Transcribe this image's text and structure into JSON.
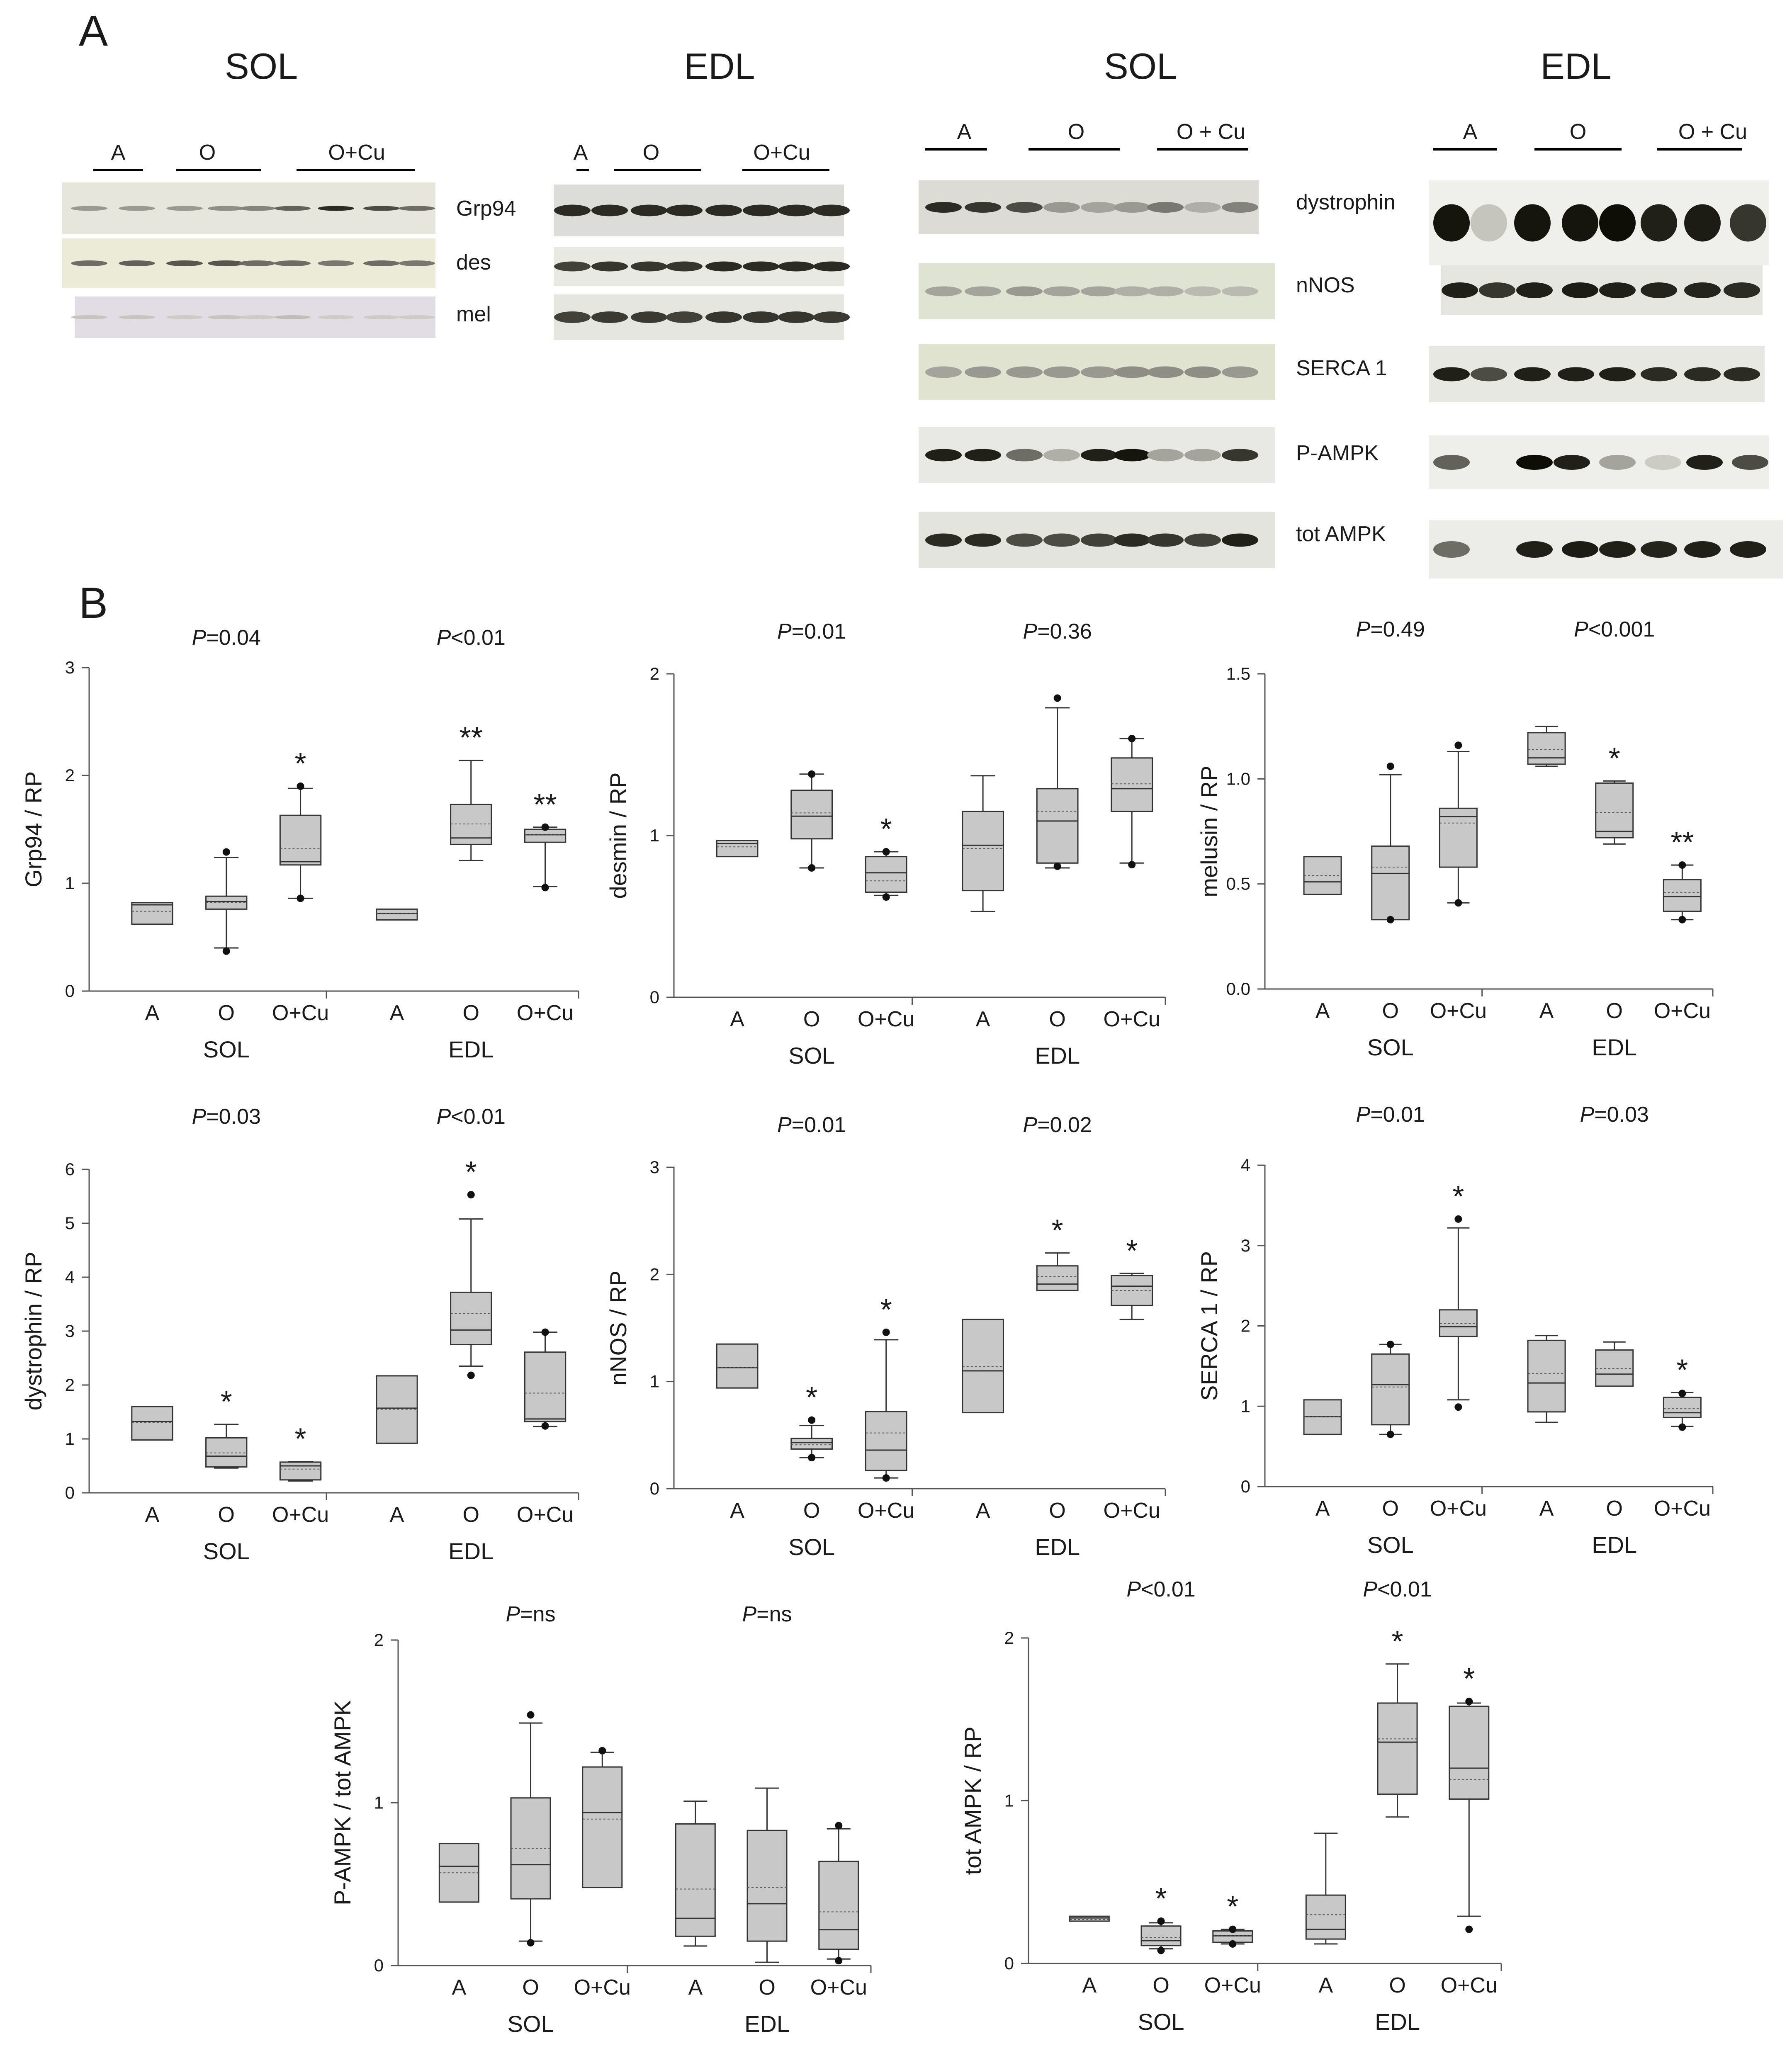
{
  "panel_a": {
    "letter": "A",
    "blots": [
      {
        "title": "SOL",
        "groups": [
          "A",
          "O",
          "O+Cu"
        ],
        "proteins": [
          "Grp94",
          "des",
          "mel"
        ]
      },
      {
        "title": "EDL",
        "groups": [
          "A",
          "O",
          "O+Cu"
        ],
        "proteins": []
      },
      {
        "title": "SOL",
        "groups": [
          "A",
          "O",
          "O + Cu"
        ],
        "proteins": [
          "dystrophin",
          "nNOS",
          "SERCA 1",
          "P-AMPK",
          "tot AMPK"
        ]
      },
      {
        "title": "EDL",
        "groups": [
          "A",
          "O",
          "O + Cu"
        ],
        "proteins": []
      }
    ]
  },
  "panel_b": {
    "letter": "B"
  },
  "chart_data": [
    {
      "type": "box",
      "ylabel": "Grp94 / RP",
      "ylim": [
        0,
        3
      ],
      "yticks": [
        "0",
        "1",
        "2",
        "3"
      ],
      "p_values": [
        "P=0.04",
        "P<0.01"
      ],
      "groups": [
        {
          "name": "SOL",
          "categories": [
            "A",
            "O",
            "O+Cu"
          ],
          "boxes": [
            {
              "whislo": 0.62,
              "q1": 0.62,
              "med": 0.8,
              "q3": 0.82,
              "whishi": 0.82,
              "mean": 0.74,
              "outliers": [],
              "sig": ""
            },
            {
              "whislo": 0.4,
              "q1": 0.76,
              "med": 0.83,
              "q3": 0.88,
              "whishi": 1.24,
              "mean": 0.82,
              "outliers": [
                0.37,
                1.29
              ],
              "sig": ""
            },
            {
              "whislo": 0.86,
              "q1": 1.17,
              "med": 1.2,
              "q3": 1.63,
              "whishi": 1.88,
              "mean": 1.32,
              "outliers": [
                0.86,
                1.9
              ],
              "sig": "*"
            }
          ]
        },
        {
          "name": "EDL",
          "categories": [
            "A",
            "O",
            "O+Cu"
          ],
          "boxes": [
            {
              "whislo": 0.66,
              "q1": 0.66,
              "med": 0.72,
              "q3": 0.76,
              "whishi": 0.76,
              "mean": 0.72,
              "outliers": [],
              "sig": ""
            },
            {
              "whislo": 1.21,
              "q1": 1.36,
              "med": 1.42,
              "q3": 1.73,
              "whishi": 2.14,
              "mean": 1.55,
              "outliers": [],
              "sig": "**"
            },
            {
              "whislo": 0.97,
              "q1": 1.38,
              "med": 1.45,
              "q3": 1.5,
              "whishi": 1.52,
              "mean": 1.45,
              "outliers": [
                0.96,
                1.52
              ],
              "sig": "**"
            }
          ]
        }
      ]
    },
    {
      "type": "box",
      "ylabel": "desmin / RP",
      "ylim": [
        0,
        2
      ],
      "yticks": [
        "0",
        "1",
        "2"
      ],
      "p_values": [
        "P=0.01",
        "P=0.36"
      ],
      "groups": [
        {
          "name": "SOL",
          "categories": [
            "A",
            "O",
            "O+Cu"
          ],
          "boxes": [
            {
              "whislo": 0.87,
              "q1": 0.87,
              "med": 0.95,
              "q3": 0.97,
              "whishi": 0.97,
              "mean": 0.93,
              "outliers": [],
              "sig": ""
            },
            {
              "whislo": 0.8,
              "q1": 0.98,
              "med": 1.12,
              "q3": 1.28,
              "whishi": 1.38,
              "mean": 1.14,
              "outliers": [
                0.8,
                1.38
              ],
              "sig": ""
            },
            {
              "whislo": 0.63,
              "q1": 0.65,
              "med": 0.77,
              "q3": 0.87,
              "whishi": 0.9,
              "mean": 0.72,
              "outliers": [
                0.62,
                0.9
              ],
              "sig": "*"
            }
          ]
        },
        {
          "name": "EDL",
          "categories": [
            "A",
            "O",
            "O+Cu"
          ],
          "boxes": [
            {
              "whislo": 0.53,
              "q1": 0.66,
              "med": 0.94,
              "q3": 1.15,
              "whishi": 1.37,
              "mean": 0.92,
              "outliers": [],
              "sig": ""
            },
            {
              "whislo": 0.8,
              "q1": 0.83,
              "med": 1.09,
              "q3": 1.29,
              "whishi": 1.79,
              "mean": 1.15,
              "outliers": [
                0.81,
                1.85
              ],
              "sig": ""
            },
            {
              "whislo": 0.83,
              "q1": 1.15,
              "med": 1.29,
              "q3": 1.48,
              "whishi": 1.6,
              "mean": 1.32,
              "outliers": [
                0.82,
                1.6
              ],
              "sig": ""
            }
          ]
        }
      ]
    },
    {
      "type": "box",
      "ylabel": "melusin / RP",
      "ylim": [
        0,
        1.5
      ],
      "yticks": [
        "0.0",
        "0.5",
        "1.0",
        "1.5"
      ],
      "p_values": [
        "P=0.49",
        "P<0.001"
      ],
      "groups": [
        {
          "name": "SOL",
          "categories": [
            "A",
            "O",
            "O+Cu"
          ],
          "boxes": [
            {
              "whislo": 0.45,
              "q1": 0.45,
              "med": 0.51,
              "q3": 0.63,
              "whishi": 0.63,
              "mean": 0.54,
              "outliers": [],
              "sig": ""
            },
            {
              "whislo": 0.33,
              "q1": 0.33,
              "med": 0.55,
              "q3": 0.68,
              "whishi": 1.02,
              "mean": 0.58,
              "outliers": [
                0.33,
                1.06
              ],
              "sig": ""
            },
            {
              "whislo": 0.41,
              "q1": 0.58,
              "med": 0.82,
              "q3": 0.86,
              "whishi": 1.13,
              "mean": 0.79,
              "outliers": [
                0.41,
                1.16
              ],
              "sig": ""
            }
          ]
        },
        {
          "name": "EDL",
          "categories": [
            "A",
            "O",
            "O+Cu"
          ],
          "boxes": [
            {
              "whislo": 1.06,
              "q1": 1.07,
              "med": 1.1,
              "q3": 1.22,
              "whishi": 1.25,
              "mean": 1.14,
              "outliers": [],
              "sig": ""
            },
            {
              "whislo": 0.69,
              "q1": 0.72,
              "med": 0.75,
              "q3": 0.98,
              "whishi": 0.99,
              "mean": 0.84,
              "outliers": [],
              "sig": "*"
            },
            {
              "whislo": 0.33,
              "q1": 0.37,
              "med": 0.44,
              "q3": 0.52,
              "whishi": 0.59,
              "mean": 0.46,
              "outliers": [
                0.33,
                0.59
              ],
              "sig": "**"
            }
          ]
        }
      ]
    },
    {
      "type": "box",
      "ylabel": "dystrophin / RP",
      "ylim": [
        0,
        6
      ],
      "yticks": [
        "0",
        "1",
        "2",
        "3",
        "4",
        "5",
        "6"
      ],
      "p_values": [
        "P=0.03",
        "P<0.01"
      ],
      "groups": [
        {
          "name": "SOL",
          "categories": [
            "A",
            "O",
            "O+Cu"
          ],
          "boxes": [
            {
              "whislo": 0.98,
              "q1": 0.98,
              "med": 1.32,
              "q3": 1.6,
              "whishi": 1.6,
              "mean": 1.3,
              "outliers": [],
              "sig": ""
            },
            {
              "whislo": 0.46,
              "q1": 0.48,
              "med": 0.68,
              "q3": 1.02,
              "whishi": 1.27,
              "mean": 0.74,
              "outliers": [],
              "sig": "*"
            },
            {
              "whislo": 0.22,
              "q1": 0.24,
              "med": 0.5,
              "q3": 0.57,
              "whishi": 0.58,
              "mean": 0.44,
              "outliers": [],
              "sig": "*"
            }
          ]
        },
        {
          "name": "EDL",
          "categories": [
            "A",
            "O",
            "O+Cu"
          ],
          "boxes": [
            {
              "whislo": 0.92,
              "q1": 0.92,
              "med": 1.57,
              "q3": 2.17,
              "whishi": 2.17,
              "mean": 1.55,
              "outliers": [],
              "sig": ""
            },
            {
              "whislo": 2.35,
              "q1": 2.75,
              "med": 3.02,
              "q3": 3.72,
              "whishi": 5.08,
              "mean": 3.33,
              "outliers": [
                2.18,
                5.53
              ],
              "sig": "*"
            },
            {
              "whislo": 1.23,
              "q1": 1.32,
              "med": 1.37,
              "q3": 2.61,
              "whishi": 2.98,
              "mean": 1.85,
              "outliers": [
                1.24,
                2.98
              ],
              "sig": ""
            }
          ]
        }
      ]
    },
    {
      "type": "box",
      "ylabel": "nNOS / RP",
      "ylim": [
        0,
        3
      ],
      "yticks": [
        "0",
        "1",
        "2",
        "3"
      ],
      "p_values": [
        "P=0.01",
        "P=0.02"
      ],
      "groups": [
        {
          "name": "SOL",
          "categories": [
            "A",
            "O",
            "O+Cu"
          ],
          "boxes": [
            {
              "whislo": 0.94,
              "q1": 0.94,
              "med": 1.13,
              "q3": 1.35,
              "whishi": 1.35,
              "mean": 1.13,
              "outliers": [],
              "sig": ""
            },
            {
              "whislo": 0.29,
              "q1": 0.37,
              "med": 0.43,
              "q3": 0.47,
              "whishi": 0.59,
              "mean": 0.41,
              "outliers": [
                0.29,
                0.64
              ],
              "sig": "*"
            },
            {
              "whislo": 0.1,
              "q1": 0.17,
              "med": 0.36,
              "q3": 0.72,
              "whishi": 1.39,
              "mean": 0.52,
              "outliers": [
                0.1,
                1.46
              ],
              "sig": "*"
            }
          ]
        },
        {
          "name": "EDL",
          "categories": [
            "A",
            "O",
            "O+Cu"
          ],
          "boxes": [
            {
              "whislo": 0.71,
              "q1": 0.71,
              "med": 1.1,
              "q3": 1.58,
              "whishi": 1.58,
              "mean": 1.14,
              "outliers": [],
              "sig": ""
            },
            {
              "whislo": 1.85,
              "q1": 1.85,
              "med": 1.91,
              "q3": 2.08,
              "whishi": 2.2,
              "mean": 1.98,
              "outliers": [],
              "sig": "*"
            },
            {
              "whislo": 1.58,
              "q1": 1.71,
              "med": 1.89,
              "q3": 1.99,
              "whishi": 2.01,
              "mean": 1.85,
              "outliers": [],
              "sig": "*"
            }
          ]
        }
      ]
    },
    {
      "type": "box",
      "ylabel": "SERCA 1 / RP",
      "ylim": [
        0,
        4
      ],
      "yticks": [
        "0",
        "1",
        "2",
        "3",
        "4"
      ],
      "p_values": [
        "P=0.01",
        "P=0.03"
      ],
      "groups": [
        {
          "name": "SOL",
          "categories": [
            "A",
            "O",
            "O+Cu"
          ],
          "boxes": [
            {
              "whislo": 0.65,
              "q1": 0.65,
              "med": 0.87,
              "q3": 1.08,
              "whishi": 1.08,
              "mean": 0.87,
              "outliers": [],
              "sig": ""
            },
            {
              "whislo": 0.65,
              "q1": 0.77,
              "med": 1.27,
              "q3": 1.65,
              "whishi": 1.77,
              "mean": 1.24,
              "outliers": [
                0.65,
                1.77
              ],
              "sig": ""
            },
            {
              "whislo": 1.08,
              "q1": 1.87,
              "med": 1.99,
              "q3": 2.2,
              "whishi": 3.22,
              "mean": 2.03,
              "outliers": [
                0.99,
                3.33
              ],
              "sig": "*"
            }
          ]
        },
        {
          "name": "EDL",
          "categories": [
            "A",
            "O",
            "O+Cu"
          ],
          "boxes": [
            {
              "whislo": 0.8,
              "q1": 0.93,
              "med": 1.29,
              "q3": 1.82,
              "whishi": 1.88,
              "mean": 1.41,
              "outliers": [],
              "sig": ""
            },
            {
              "whislo": 1.25,
              "q1": 1.25,
              "med": 1.4,
              "q3": 1.7,
              "whishi": 1.8,
              "mean": 1.47,
              "outliers": [],
              "sig": ""
            },
            {
              "whislo": 0.75,
              "q1": 0.86,
              "med": 0.92,
              "q3": 1.11,
              "whishi": 1.17,
              "mean": 0.97,
              "outliers": [
                0.74,
                1.16
              ],
              "sig": "*"
            }
          ]
        }
      ]
    },
    {
      "type": "box",
      "ylabel": "P-AMPK / tot AMPK",
      "ylim": [
        0,
        2
      ],
      "yticks": [
        "0",
        "1",
        "2"
      ],
      "p_values": [
        "P=ns",
        "P=ns"
      ],
      "groups": [
        {
          "name": "SOL",
          "categories": [
            "A",
            "O",
            "O+Cu"
          ],
          "boxes": [
            {
              "whislo": 0.39,
              "q1": 0.39,
              "med": 0.61,
              "q3": 0.75,
              "whishi": 0.75,
              "mean": 0.57,
              "outliers": [],
              "sig": ""
            },
            {
              "whislo": 0.15,
              "q1": 0.41,
              "med": 0.62,
              "q3": 1.03,
              "whishi": 1.49,
              "mean": 0.72,
              "outliers": [
                0.14,
                1.54
              ],
              "sig": ""
            },
            {
              "whislo": 0.48,
              "q1": 0.48,
              "med": 0.94,
              "q3": 1.22,
              "whishi": 1.31,
              "mean": 0.9,
              "outliers": [
                1.32
              ],
              "sig": ""
            }
          ]
        },
        {
          "name": "EDL",
          "categories": [
            "A",
            "O",
            "O+Cu"
          ],
          "boxes": [
            {
              "whislo": 0.12,
              "q1": 0.18,
              "med": 0.29,
              "q3": 0.87,
              "whishi": 1.01,
              "mean": 0.47,
              "outliers": [],
              "sig": ""
            },
            {
              "whislo": 0.02,
              "q1": 0.15,
              "med": 0.38,
              "q3": 0.83,
              "whishi": 1.09,
              "mean": 0.48,
              "outliers": [],
              "sig": ""
            },
            {
              "whislo": 0.04,
              "q1": 0.1,
              "med": 0.22,
              "q3": 0.64,
              "whishi": 0.84,
              "mean": 0.33,
              "outliers": [
                0.03,
                0.86
              ],
              "sig": ""
            }
          ]
        }
      ]
    },
    {
      "type": "box",
      "ylabel": "tot AMPK / RP",
      "ylim": [
        0,
        2
      ],
      "yticks": [
        "0",
        "1",
        "2"
      ],
      "p_values": [
        "P<0.01",
        "P<0.01"
      ],
      "groups": [
        {
          "name": "SOL",
          "categories": [
            "A",
            "O",
            "O+Cu"
          ],
          "boxes": [
            {
              "whislo": 0.26,
              "q1": 0.26,
              "med": 0.28,
              "q3": 0.29,
              "whishi": 0.29,
              "mean": 0.27,
              "outliers": [],
              "sig": ""
            },
            {
              "whislo": 0.09,
              "q1": 0.11,
              "med": 0.14,
              "q3": 0.23,
              "whishi": 0.25,
              "mean": 0.16,
              "outliers": [
                0.08,
                0.26
              ],
              "sig": "*"
            },
            {
              "whislo": 0.12,
              "q1": 0.13,
              "med": 0.17,
              "q3": 0.2,
              "whishi": 0.21,
              "mean": 0.17,
              "outliers": [
                0.12,
                0.21
              ],
              "sig": "*"
            }
          ]
        },
        {
          "name": "EDL",
          "categories": [
            "A",
            "O",
            "O+Cu"
          ],
          "boxes": [
            {
              "whislo": 0.12,
              "q1": 0.15,
              "med": 0.21,
              "q3": 0.42,
              "whishi": 0.8,
              "mean": 0.3,
              "outliers": [],
              "sig": ""
            },
            {
              "whislo": 0.9,
              "q1": 1.04,
              "med": 1.36,
              "q3": 1.6,
              "whishi": 1.84,
              "mean": 1.38,
              "outliers": [],
              "sig": "*"
            },
            {
              "whislo": 0.29,
              "q1": 1.01,
              "med": 1.2,
              "q3": 1.58,
              "whishi": 1.6,
              "mean": 1.13,
              "outliers": [
                0.21,
                1.61
              ],
              "sig": "*"
            }
          ]
        }
      ]
    }
  ]
}
